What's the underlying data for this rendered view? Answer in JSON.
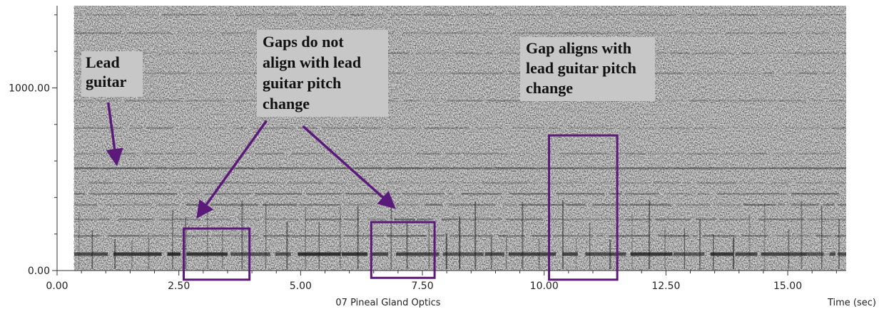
{
  "chart_data": {
    "type": "heatmap",
    "subtype": "spectrogram",
    "title": "07 Pineal Gland Optics",
    "xlabel": "Time (sec)",
    "ylabel": "",
    "xlim": [
      0,
      16.2
    ],
    "ylim": [
      0,
      1450
    ],
    "x_ticks": [
      {
        "value": 0.0,
        "label": "0.00"
      },
      {
        "value": 2.5,
        "label": "2.50"
      },
      {
        "value": 5.0,
        "label": "5.00"
      },
      {
        "value": 7.5,
        "label": "7.50"
      },
      {
        "value": 10.0,
        "label": "10.00"
      },
      {
        "value": 12.5,
        "label": "12.50"
      },
      {
        "value": 15.0,
        "label": "15.00"
      }
    ],
    "y_ticks": [
      {
        "value": 0,
        "label": "0.00"
      },
      {
        "value": 1000,
        "label": "1000.00"
      }
    ],
    "spectrogram": {
      "t_start": 0.35,
      "t_end": 16.2,
      "harmonic_bands_freq": [
        90,
        190,
        280,
        360,
        420,
        480,
        560,
        640,
        780,
        930,
        1080,
        1190,
        1300,
        1400
      ],
      "lead_guitar_line_freq": 560
    },
    "annotations": [
      {
        "label": "Lead guitar",
        "lines": [
          "Lead",
          "guitar"
        ],
        "arrow_from": [
          1.05,
          920
        ],
        "arrow_to": [
          1.22,
          590
        ]
      },
      {
        "label": "Gaps do not align with lead guitar pitch change",
        "lines": [
          "Gaps do not",
          "align with lead",
          "guitar pitch",
          "change"
        ],
        "arrows": [
          {
            "from": [
              4.3,
              820
            ],
            "to": [
              2.9,
              300
            ]
          },
          {
            "from": [
              5.05,
              790
            ],
            "to": [
              6.9,
              350
            ]
          }
        ]
      },
      {
        "label": "Gap aligns with lead guitar pitch change",
        "lines": [
          "Gap aligns with",
          "lead guitar pitch",
          "change"
        ]
      }
    ],
    "highlight_boxes": [
      {
        "x_range": [
          2.6,
          3.95
        ],
        "y_range": [
          -50,
          230
        ]
      },
      {
        "x_range": [
          6.45,
          7.75
        ],
        "y_range": [
          -40,
          265
        ]
      },
      {
        "x_range": [
          10.1,
          11.5
        ],
        "y_range": [
          -50,
          740
        ]
      }
    ],
    "colors": {
      "spectrogram_ink": "#1a1a1a",
      "annotation_box": "#c7c7c7",
      "highlight_and_arrows": "#5b1a7a"
    }
  }
}
